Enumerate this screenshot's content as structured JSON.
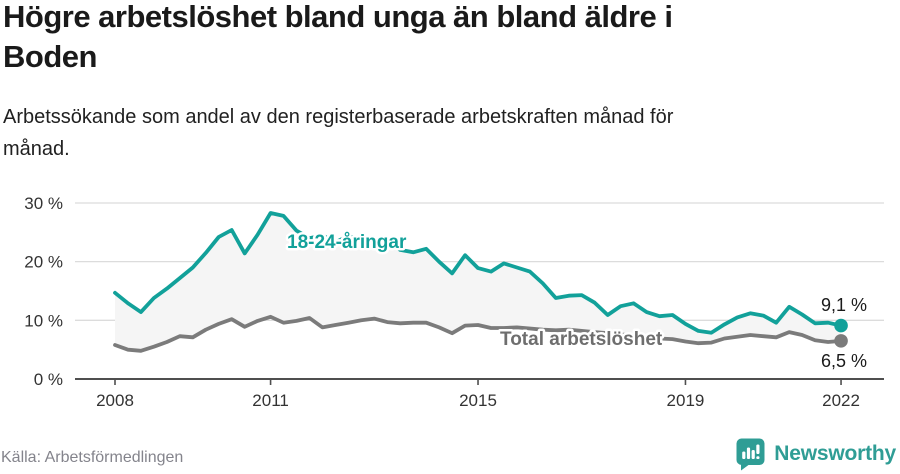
{
  "header": {
    "title": "Högre arbetslöshet bland unga än bland äldre i\nBoden",
    "subtitle": "Arbetssökande som andel av den registerbaserade arbetskraften månad för\nmånad."
  },
  "footer": {
    "source": "Källa: Arbetsförmedlingen",
    "brand": "Newsworthy"
  },
  "colors": {
    "youth_line": "#12a19a",
    "total_line": "#7b7b7b",
    "band_fill": "#f5f5f5",
    "grid": "#dcdcdc",
    "axis": "#4f4f4f",
    "tick_text": "#333333",
    "total_label": "#6e6e6e",
    "brand_teal": "#2f9d95"
  },
  "chart_data": {
    "type": "line",
    "x_start_year": 2008,
    "x_end_year": 2022,
    "points_per_year": 4,
    "x_tick_years": [
      2008,
      2011,
      2015,
      2019,
      2022
    ],
    "x_tick_labels": [
      "2008",
      "2011",
      "2015",
      "2019",
      "2022"
    ],
    "y_ticks": [
      {
        "value": 0,
        "label": "0 %"
      },
      {
        "value": 10,
        "label": "10 %"
      },
      {
        "value": 20,
        "label": "20 %"
      },
      {
        "value": 30,
        "label": "30 %"
      }
    ],
    "ylim": [
      0,
      32
    ],
    "grid": true,
    "series": [
      {
        "name": "18-24-åringar",
        "end_label": "9,1 %",
        "end_value": 9.1,
        "values": [
          14.7,
          12.9,
          11.4,
          13.8,
          15.4,
          17.2,
          19.0,
          21.5,
          24.2,
          25.4,
          21.4,
          24.6,
          28.3,
          27.8,
          25.3,
          24.0,
          24.5,
          23.3,
          24.4,
          23.7,
          22.7,
          23.5,
          22.0,
          21.6,
          22.2,
          20.0,
          18.0,
          21.1,
          18.9,
          18.3,
          19.7,
          19.0,
          18.3,
          16.3,
          13.8,
          14.2,
          14.3,
          13.0,
          10.9,
          12.4,
          12.9,
          11.4,
          10.7,
          10.9,
          9.4,
          8.2,
          7.9,
          9.3,
          10.5,
          11.2,
          10.8,
          9.6,
          12.3,
          11.0,
          9.5,
          9.6,
          9.1
        ]
      },
      {
        "name": "Total arbetslöshet",
        "end_label": "6,5 %",
        "end_value": 6.5,
        "values": [
          5.8,
          5.0,
          4.8,
          5.5,
          6.3,
          7.3,
          7.1,
          8.4,
          9.4,
          10.2,
          8.9,
          9.9,
          10.6,
          9.6,
          9.9,
          10.4,
          8.8,
          9.2,
          9.6,
          10.0,
          10.3,
          9.7,
          9.5,
          9.6,
          9.6,
          8.8,
          7.8,
          9.1,
          9.2,
          8.7,
          8.7,
          8.8,
          8.6,
          8.4,
          8.3,
          8.4,
          8.2,
          8.0,
          7.8,
          7.6,
          7.4,
          7.1,
          6.9,
          6.8,
          6.4,
          6.1,
          6.2,
          6.9,
          7.2,
          7.5,
          7.3,
          7.1,
          8.0,
          7.5,
          6.6,
          6.3,
          6.5
        ]
      }
    ]
  }
}
